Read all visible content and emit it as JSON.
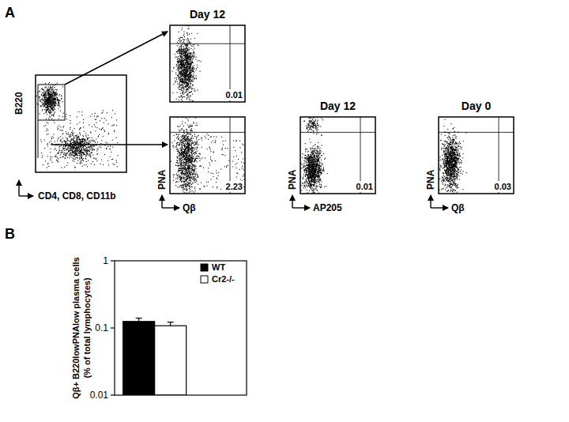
{
  "panel_a": {
    "label": "A",
    "gate_plot": {
      "y_label": "B220",
      "x_label": "CD4, CD8, CD11b"
    },
    "plots": [
      {
        "title": "Day 12",
        "quadrant_value": 0.01
      },
      {
        "y_label": "PNA",
        "x_label": "Qβ",
        "quadrant_value": 2.23
      },
      {
        "title": "Day 12",
        "y_label": "PNA",
        "x_label": "AP205",
        "quadrant_value": 0.01
      },
      {
        "title": "Day 0",
        "y_label": "PNA",
        "x_label": "Qβ",
        "quadrant_value": 0.03
      }
    ]
  },
  "panel_b": {
    "label": "B"
  },
  "chart_data": {
    "type": "bar",
    "y_label": [
      "Qβ+ B220lowPNAlow plasma cells",
      "(% of total lymphocytes)"
    ],
    "categories": [
      null
    ],
    "series": [
      {
        "name": "WT",
        "color": "#000000",
        "values": [
          0.125
        ],
        "error": [
          0.015
        ]
      },
      {
        "name": "Cr2-/-",
        "color": "#ffffff",
        "values": [
          0.108
        ],
        "error": [
          0.014
        ]
      }
    ],
    "log": "y",
    "ylim": [
      0.01,
      1
    ],
    "yticks": [
      0.01,
      0.1,
      1
    ],
    "legend": "top-right"
  }
}
